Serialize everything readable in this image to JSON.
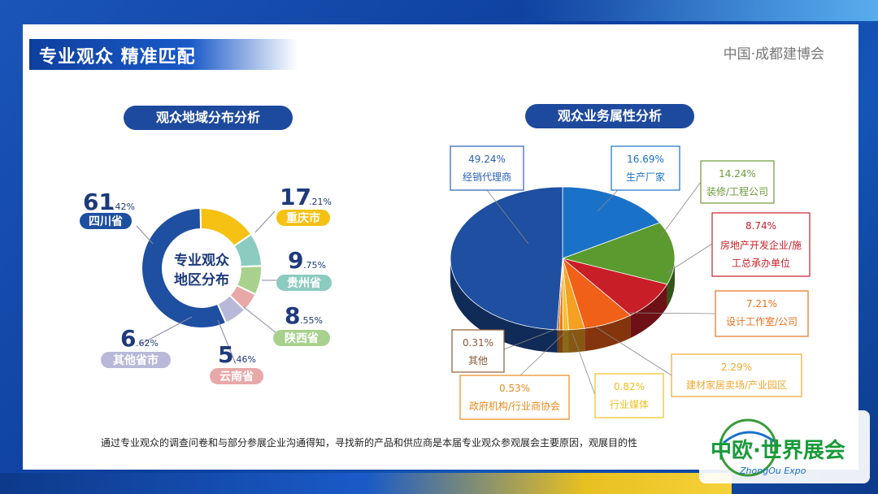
{
  "header": {
    "title": "专业观众 精准匹配",
    "brand": "中国·成都建博会"
  },
  "chart_data": [
    {
      "type": "pie",
      "variant": "donut",
      "title": "观众地域分布分析",
      "center_label": [
        "专业观众",
        "地区分布"
      ],
      "slices": [
        {
          "name": "四川省",
          "value": 61.42,
          "int": "61",
          "dec": ".42%",
          "color": "#1e4fa0"
        },
        {
          "name": "重庆市",
          "value": 17.21,
          "int": "17",
          "dec": ".21%",
          "color": "#f5c113"
        },
        {
          "name": "贵州省",
          "value": 9.75,
          "int": "9",
          "dec": ".75%",
          "color": "#8ccbc0"
        },
        {
          "name": "陕西省",
          "value": 8.55,
          "int": "8",
          "dec": ".55%",
          "color": "#a8d18d"
        },
        {
          "name": "云南省",
          "value": 5.46,
          "int": "5",
          "dec": ".46%",
          "color": "#e8a8a8"
        },
        {
          "name": "其他省市",
          "value": 6.62,
          "int": "6",
          "dec": ".62%",
          "color": "#b8b8d8"
        }
      ]
    },
    {
      "type": "pie",
      "variant": "3d",
      "title": "观众业务属性分析",
      "slices": [
        {
          "name": "经销代理商",
          "value": 49.24,
          "label": "49.24%",
          "color": "#1e4fa0",
          "box": "#2a62b8"
        },
        {
          "name": "生产厂家",
          "value": 16.69,
          "label": "16.69%",
          "color": "#1a72c8",
          "box": "#1a72c8"
        },
        {
          "name": "装修/工程公司",
          "value": 14.24,
          "label": "14.24%",
          "color": "#5a9a2e",
          "box": "#6a9a3a"
        },
        {
          "name": "房地产开发企业/施工总承办单位",
          "value": 8.74,
          "label": "8.74%",
          "color": "#c81e28",
          "box": "#c8202a"
        },
        {
          "name": "设计工作室/公司",
          "value": 7.21,
          "label": "7.21%",
          "color": "#f06018",
          "box": "#e8701c"
        },
        {
          "name": "建材家居卖场/产业园区",
          "value": 2.29,
          "label": "2.29%",
          "color": "#f5a020",
          "box": "#f0a830"
        },
        {
          "name": "行业媒体",
          "value": 0.82,
          "label": "0.82%",
          "color": "#f5c030",
          "box": "#f0c020"
        },
        {
          "name": "政府机构/行业商协会",
          "value": 0.53,
          "label": "0.53%",
          "color": "#e87818",
          "box": "#e88a1c"
        },
        {
          "name": "其他",
          "value": 0.31,
          "label": "0.31%",
          "color": "#a06030",
          "box": "#8a5a3a"
        }
      ]
    }
  ],
  "footnote": "通过专业观众的调查问卷和与部分参展企业沟通得知，寻找新的产品和供应商是本届专业观众参观展会主要原因，观展目的性",
  "logo": {
    "text": "中欧·世界展会",
    "sub": "ZhongOu Expo"
  },
  "colors": {
    "frame": "#1456b8",
    "pill": "#1e4a9e",
    "accent_yellow": "#f5c113"
  }
}
